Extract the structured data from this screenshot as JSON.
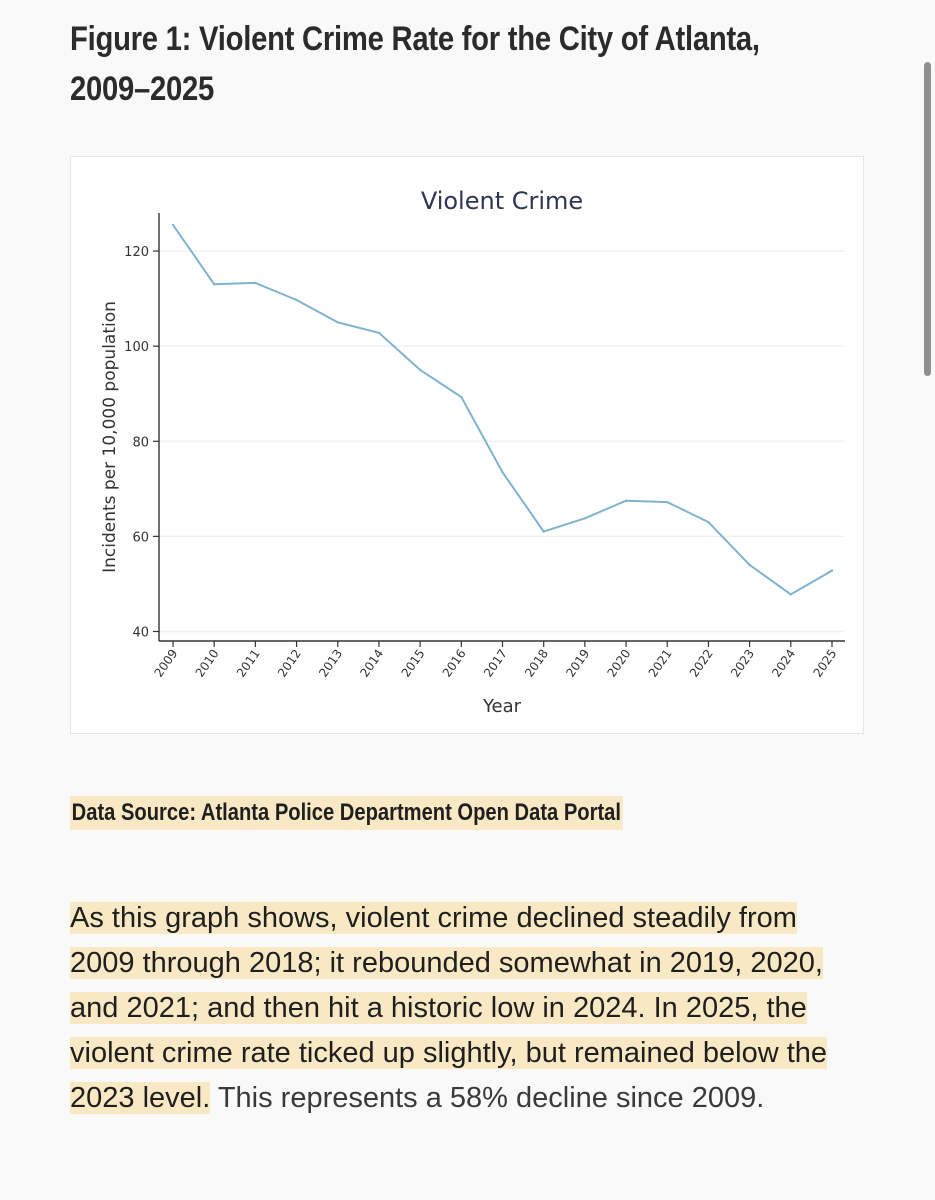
{
  "figure_title": "Figure 1: Violent Crime Rate for the City of Atlanta, 2009–2025",
  "data_source": "Data Source: Atlanta Police Department Open Data Portal",
  "body": {
    "highlighted": "As this graph shows, violent crime declined steadily from 2009 through 2018; it rebounded somewhat in 2019, 2020, and 2021; and then hit a historic low in 2024. In 2025, the violent crime rate ticked up slightly, but remained below the 2023 level.",
    "rest": " This represents a 58% decline since 2009."
  },
  "colors": {
    "line": "#7fb3cf",
    "highlight": "#f8e8c3",
    "gridline": "#eef2f5",
    "chart_title": "#2f3553"
  },
  "chart_data": {
    "type": "line",
    "title": "Violent Crime",
    "xlabel": "Year",
    "ylabel": "Incidents per 10,000 population",
    "categories": [
      "2009",
      "2010",
      "2011",
      "2012",
      "2013",
      "2014",
      "2015",
      "2016",
      "2017",
      "2018",
      "2019",
      "2020",
      "2021",
      "2022",
      "2023",
      "2024",
      "2025"
    ],
    "series": [
      {
        "values": [
          125.5,
          113,
          113.3,
          109.7,
          105,
          102.8,
          95,
          89.3,
          73.5,
          61,
          63.8,
          67.5,
          67.2,
          63,
          54,
          47.8,
          52.8
        ]
      }
    ],
    "yticks": [
      40,
      60,
      80,
      100,
      120
    ],
    "ylim": [
      38,
      128
    ],
    "grid": "horizontal",
    "legend": "none"
  }
}
